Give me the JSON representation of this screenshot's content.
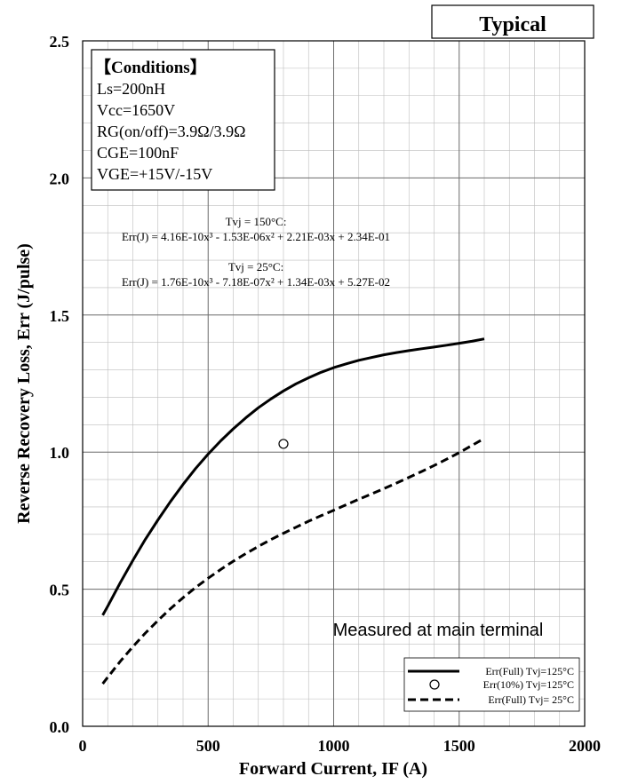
{
  "badge": "Typical",
  "chart_data": {
    "type": "line",
    "xlabel": "Forward Current, IF (A)",
    "ylabel": "Reverse Recovery Loss, Err (J/pulse)",
    "xlim": [
      0,
      2000
    ],
    "ylim": [
      0,
      2.5
    ],
    "xticks": [
      0,
      500,
      1000,
      1500,
      2000
    ],
    "yticks": [
      0.0,
      0.5,
      1.0,
      1.5,
      2.0,
      2.5
    ],
    "ytick_labels": [
      "0.0",
      "0.5",
      "1.0",
      "1.5",
      "2.0",
      "2.5"
    ],
    "grid": true,
    "legend_position": "bottom-right",
    "series": [
      {
        "name": "Err(Full) Tvj=125°C",
        "style": "solid",
        "x": [
          80,
          100,
          150,
          200,
          250,
          300,
          350,
          400,
          450,
          500,
          550,
          600,
          650,
          700,
          750,
          800,
          850,
          900,
          950,
          1000,
          1050,
          1100,
          1150,
          1200,
          1250,
          1300,
          1350,
          1400,
          1450,
          1500,
          1550,
          1600
        ],
        "y": [
          0.405,
          0.438,
          0.524,
          0.605,
          0.682,
          0.753,
          0.82,
          0.882,
          0.94,
          0.993,
          1.041,
          1.085,
          1.125,
          1.162,
          1.194,
          1.223,
          1.249,
          1.271,
          1.291,
          1.308,
          1.322,
          1.335,
          1.345,
          1.355,
          1.363,
          1.37,
          1.377,
          1.383,
          1.39,
          1.397,
          1.404,
          1.413
        ]
      },
      {
        "name": "Err(10%) Tvj=125°C",
        "style": "marker",
        "x": [
          800
        ],
        "y": [
          1.03
        ]
      },
      {
        "name": "Err(Full) Tvj= 25°C",
        "style": "dashed",
        "x": [
          80,
          100,
          150,
          200,
          250,
          300,
          350,
          400,
          450,
          500,
          550,
          600,
          650,
          700,
          750,
          800,
          850,
          900,
          950,
          1000,
          1050,
          1100,
          1150,
          1200,
          1250,
          1300,
          1350,
          1400,
          1450,
          1500,
          1550,
          1600
        ],
        "y": [
          0.155,
          0.179,
          0.237,
          0.29,
          0.34,
          0.386,
          0.429,
          0.469,
          0.506,
          0.54,
          0.572,
          0.602,
          0.63,
          0.656,
          0.681,
          0.704,
          0.726,
          0.748,
          0.768,
          0.788,
          0.808,
          0.828,
          0.847,
          0.867,
          0.887,
          0.908,
          0.929,
          0.951,
          0.974,
          0.998,
          1.024,
          1.05
        ]
      }
    ]
  },
  "conditions": {
    "title": "【Conditions】",
    "lines": [
      "Ls=200nH",
      "Vcc=1650V",
      "RG(on/off)=3.9Ω/3.9Ω",
      "CGE=100nF",
      "VGE=+15V/-15V"
    ]
  },
  "equations": [
    {
      "label": "Tvj = 150°C:",
      "formula": "Err(J) = 4.16E-10x³ - 1.53E-06x² + 2.21E-03x + 2.34E-01"
    },
    {
      "label": "Tvj = 25°C:",
      "formula": "Err(J) = 1.76E-10x³ - 7.18E-07x² + 1.34E-03x + 5.27E-02"
    }
  ],
  "note": "Measured at main terminal"
}
